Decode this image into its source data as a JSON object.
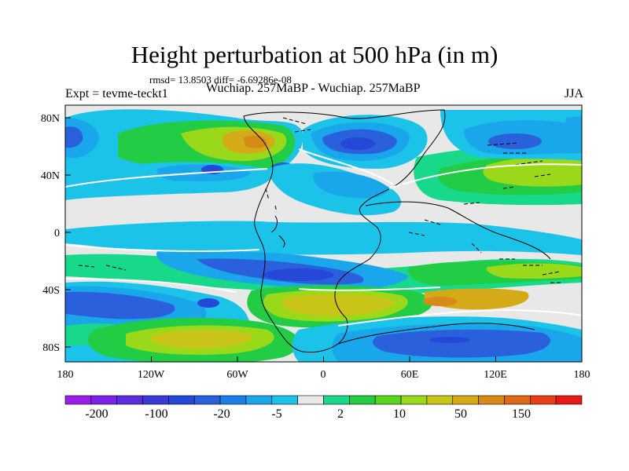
{
  "map": {
    "title": "Height perturbation at 500 hPa (in m)",
    "rmsd_line": "rmsd= 13.8503 diff= -6.69286e-08",
    "experiment_label": "Expt = tevme-teckt1",
    "comparison_label": "Wuchiap. 257MaBP - Wuchiap. 257MaBP",
    "season": "JJA",
    "lon_ticks": [
      "180",
      "120W",
      "60W",
      "0",
      "60E",
      "120E",
      "180"
    ],
    "lat_ticks": [
      "80N",
      "40N",
      "0",
      "40S",
      "80S"
    ],
    "colorbar_labels": [
      "-200",
      "-100",
      "-20",
      "-5",
      "2",
      "10",
      "50",
      "150"
    ],
    "colorbar_colors": [
      "#9a1ee8",
      "#7a22e8",
      "#5a2de0",
      "#3c3ad6",
      "#2548d8",
      "#2a60dc",
      "#1a80e8",
      "#1aa6ea",
      "#1cc3e8",
      "#e8e8e8",
      "#18d88a",
      "#22cc44",
      "#58d61c",
      "#9ad81a",
      "#c9c418",
      "#d4aa18",
      "#d88a18",
      "#e06818",
      "#e83e18",
      "#e81818"
    ]
  }
}
